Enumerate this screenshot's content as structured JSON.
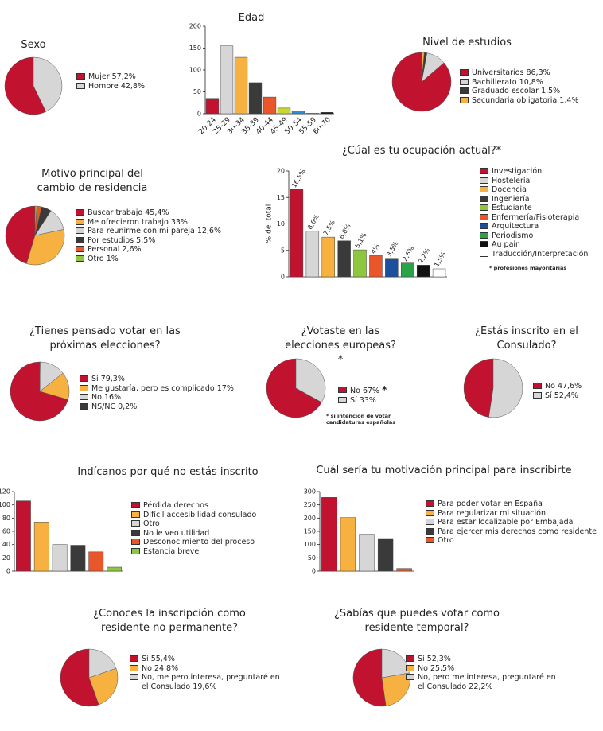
{
  "chart_data": [
    {
      "type": "pie",
      "title": "Sexo",
      "categories": [
        "Mujer",
        "Hombre"
      ],
      "values": [
        57.2,
        42.8
      ],
      "value_labels": [
        "57,2%",
        "42,8%"
      ],
      "colors": [
        "#c1122f",
        "#d6d6d6"
      ]
    },
    {
      "type": "bar",
      "title": "Edad",
      "categories": [
        "20-24",
        "25-29",
        "30-34",
        "35-39",
        "40-44",
        "45-49",
        "50-54",
        "55-59",
        "60-70"
      ],
      "values": [
        35,
        155,
        129,
        71,
        38,
        13,
        6,
        1,
        3
      ],
      "colors": [
        "#c1122f",
        "#d6d6d6",
        "#f7b140",
        "#3a3a3a",
        "#e8562a",
        "#c9d82e",
        "#2b8fd4",
        "#2aa248",
        "#111111"
      ],
      "ylim": [
        0,
        200
      ],
      "yticks": [
        0,
        50,
        100,
        150,
        200
      ]
    },
    {
      "type": "pie",
      "title": "Nivel de estudios",
      "categories": [
        "Universitarios",
        "Bachillerato",
        "Graduado escolar",
        "Secundaria obligatoria"
      ],
      "values": [
        86.3,
        10.8,
        1.5,
        1.4
      ],
      "value_labels": [
        "86,3%",
        "10,8%",
        "1,5%",
        "1,4%"
      ],
      "colors": [
        "#c1122f",
        "#d6d6d6",
        "#3a3a3a",
        "#f7b140"
      ]
    },
    {
      "type": "pie",
      "title": "Motivo principal del cambio de residencia",
      "categories": [
        "Buscar trabajo",
        "Me ofrecieron trabajo",
        "Para reunirme con mi pareja",
        "Por estudios",
        "Personal",
        "Otro"
      ],
      "values": [
        45.4,
        33,
        12.6,
        5.5,
        2.6,
        1
      ],
      "value_labels": [
        "45,4%",
        "33%",
        "12,6%",
        "5,5%",
        "2,6%",
        "1%"
      ],
      "colors": [
        "#c1122f",
        "#f7b140",
        "#d6d6d6",
        "#3a3a3a",
        "#e8562a",
        "#8dc63f"
      ]
    },
    {
      "type": "bar",
      "title": "¿Cúal es tu ocupación actual?*",
      "ylabel": "% del total",
      "categories": [
        "Investigación",
        "Hostelería",
        "Docencia",
        "Ingeniería",
        "Estudiante",
        "Enfermería/Fisioterapia",
        "Arquitectura",
        "Periodismo",
        "Au pair",
        "Traducción/Interpretación"
      ],
      "values": [
        16.5,
        8.6,
        7.5,
        6.8,
        5.1,
        4,
        3.5,
        2.6,
        2.2,
        1.5
      ],
      "value_labels": [
        "16,5%",
        "8,6%",
        "7,5%",
        "6,8%",
        "5,1%",
        "4%",
        "3,5%",
        "2,6%",
        "2,2%",
        "1,5%"
      ],
      "colors": [
        "#c1122f",
        "#d6d6d6",
        "#f7b140",
        "#3a3a3a",
        "#8dc63f",
        "#e8562a",
        "#1c4f9c",
        "#2aa248",
        "#111111",
        "#ffffff"
      ],
      "ylim": [
        0,
        20
      ],
      "yticks": [
        0,
        5,
        10,
        15,
        20
      ],
      "note": "* profesiones mayoritarias"
    },
    {
      "type": "pie",
      "title": "¿Tienes pensado votar en las próximas elecciones?",
      "categories": [
        "Sí",
        "Me gustaría, pero es complicado",
        "No",
        "NS/NC"
      ],
      "values": [
        79.3,
        17,
        16,
        0.2
      ],
      "value_labels": [
        "79,3%",
        "17%",
        "16%",
        "0,2%"
      ],
      "colors": [
        "#c1122f",
        "#f7b140",
        "#d6d6d6",
        "#3a3a3a"
      ]
    },
    {
      "type": "pie",
      "title": "¿Votaste en las elecciones europeas? *",
      "categories": [
        "No",
        "Sí"
      ],
      "values": [
        67,
        33
      ],
      "value_labels": [
        "67%",
        "33%"
      ],
      "marker": "*",
      "colors": [
        "#c1122f",
        "#d6d6d6"
      ],
      "note": "* si intencion de votar candidaturas españolas"
    },
    {
      "type": "pie",
      "title": "¿Estás inscrito en el Consulado?",
      "categories": [
        "No",
        "Sí"
      ],
      "values": [
        47.6,
        52.4
      ],
      "value_labels": [
        "47,6%",
        "52,4%"
      ],
      "colors": [
        "#c1122f",
        "#d6d6d6"
      ]
    },
    {
      "type": "bar",
      "title": "Indícanos por qué no estás inscrito",
      "categories": [
        "Pérdida derechos",
        "Difícil accesibilidad consulado",
        "Otro",
        "No le veo utilidad",
        "Desconocimiento del proceso",
        "Estancia breve"
      ],
      "values": [
        106,
        74,
        40,
        39,
        29,
        6
      ],
      "colors": [
        "#c1122f",
        "#f7b140",
        "#d6d6d6",
        "#3a3a3a",
        "#e8562a",
        "#8dc63f"
      ],
      "ylim": [
        0,
        120
      ],
      "yticks": [
        0,
        20,
        40,
        60,
        80,
        100,
        120
      ]
    },
    {
      "type": "bar",
      "title": "Cuál sería tu motivación principal para inscribirte",
      "categories": [
        "Para poder votar en España",
        "Para regularizar mi situación",
        "Para estar localizable por Embajada",
        "Para ejercer mis derechos como residente",
        "Otro"
      ],
      "values": [
        278,
        202,
        139,
        123,
        10
      ],
      "colors": [
        "#c1122f",
        "#f7b140",
        "#d6d6d6",
        "#3a3a3a",
        "#e8562a"
      ],
      "ylim": [
        0,
        300
      ],
      "yticks": [
        0,
        50,
        100,
        150,
        200,
        250,
        300
      ]
    },
    {
      "type": "pie",
      "title": "¿Conoces la inscripción como residente no permanente?",
      "categories": [
        "Sí",
        "No",
        "No, me pero interesa, preguntaré en el Consulado"
      ],
      "values": [
        55.4,
        24.8,
        19.6
      ],
      "value_labels": [
        "55,4%",
        "24,8%",
        "19,6%"
      ],
      "colors": [
        "#c1122f",
        "#f7b140",
        "#d6d6d6"
      ]
    },
    {
      "type": "pie",
      "title": "¿Sabías que puedes votar como residente temporal?",
      "categories": [
        "Sí",
        "No",
        "No, pero me interesa, preguntaré en el Consulado"
      ],
      "values": [
        52.3,
        25.5,
        22.2
      ],
      "value_labels": [
        "52,3%",
        "25,5%",
        "22,2%"
      ],
      "colors": [
        "#c1122f",
        "#f7b140",
        "#d6d6d6"
      ]
    }
  ]
}
